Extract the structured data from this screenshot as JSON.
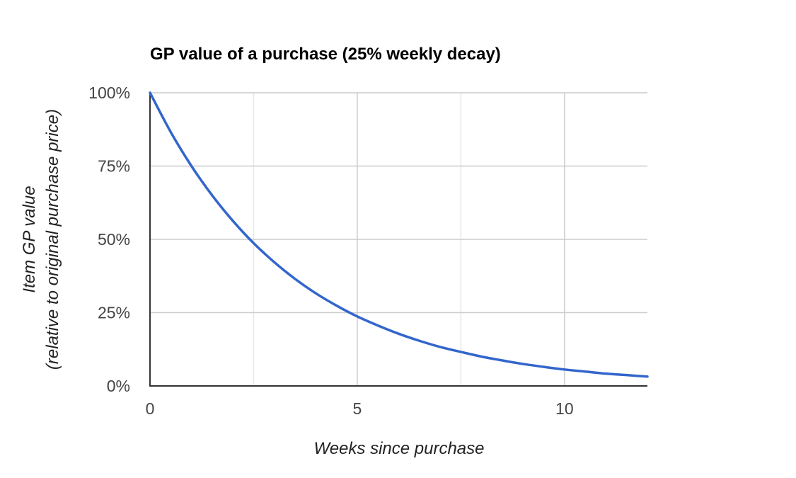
{
  "chart_data": {
    "type": "line",
    "title": "GP value of a purchase (25% weekly decay)",
    "xlabel": "Weeks since purchase",
    "ylabel_line1": "Item GP value",
    "ylabel_line2": "(relative to original purchase price)",
    "xlim": [
      0,
      12
    ],
    "ylim": [
      0,
      100
    ],
    "x_ticks": [
      {
        "value": 0,
        "label": "0"
      },
      {
        "value": 5,
        "label": "5"
      },
      {
        "value": 10,
        "label": "10"
      }
    ],
    "y_ticks": [
      {
        "value": 0,
        "label": "0%"
      },
      {
        "value": 25,
        "label": "25%"
      },
      {
        "value": 50,
        "label": "50%"
      },
      {
        "value": 75,
        "label": "75%"
      },
      {
        "value": 100,
        "label": "100%"
      }
    ],
    "grid": true,
    "legend": "none",
    "series": [
      {
        "color": "#3366cc",
        "x": [
          0,
          0.5,
          1,
          1.5,
          2,
          2.5,
          3,
          3.5,
          4,
          4.5,
          5,
          5.5,
          6,
          6.5,
          7,
          7.5,
          8,
          8.5,
          9,
          9.5,
          10,
          10.5,
          11,
          11.5,
          12
        ],
        "y": [
          100,
          86.6,
          75,
          65,
          56.3,
          48.7,
          42.2,
          36.5,
          31.6,
          27.4,
          23.7,
          20.6,
          17.8,
          15.4,
          13.3,
          11.6,
          10,
          8.7,
          7.5,
          6.5,
          5.6,
          4.9,
          4.2,
          3.7,
          3.2
        ]
      }
    ],
    "colors": {
      "grid": "#cccccc",
      "minor_grid": "#e6e6e6",
      "axis": "#333333"
    }
  }
}
